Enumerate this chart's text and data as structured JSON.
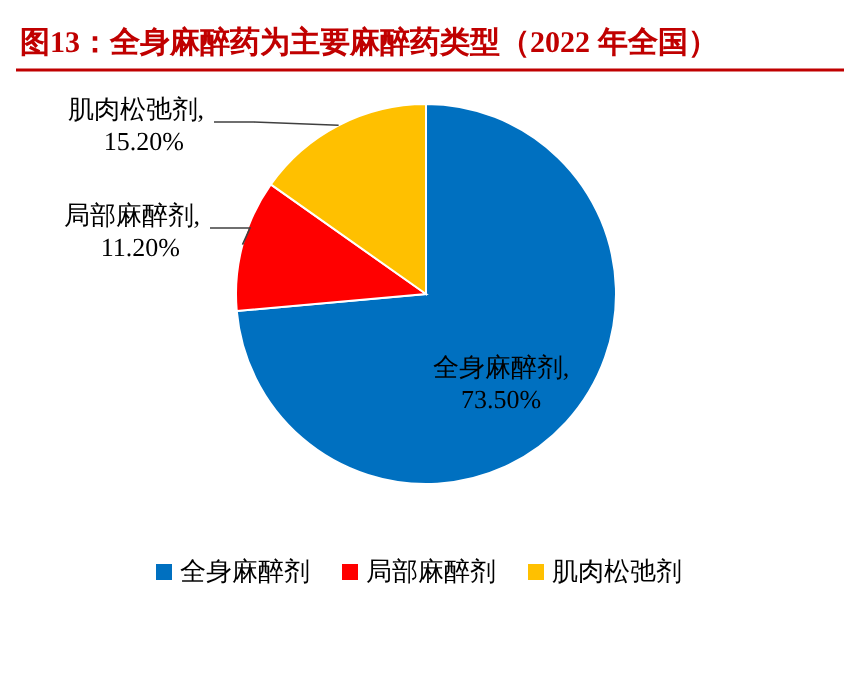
{
  "chart_data": {
    "type": "pie",
    "title": "图13：全身麻醉药为主要麻醉药类型（2022 年全国）",
    "categories": [
      "全身麻醉剂",
      "局部麻醉剂",
      "肌肉松弛剂"
    ],
    "values": [
      73.5,
      11.2,
      15.2
    ],
    "colors": [
      "#0070c0",
      "#ff0000",
      "#ffc000"
    ],
    "value_labels": [
      "全身麻醉剂,\n73.50%",
      "局部麻醉剂,\n11.20%",
      "肌肉松弛剂,\n15.20%"
    ],
    "legend": "bottom"
  }
}
